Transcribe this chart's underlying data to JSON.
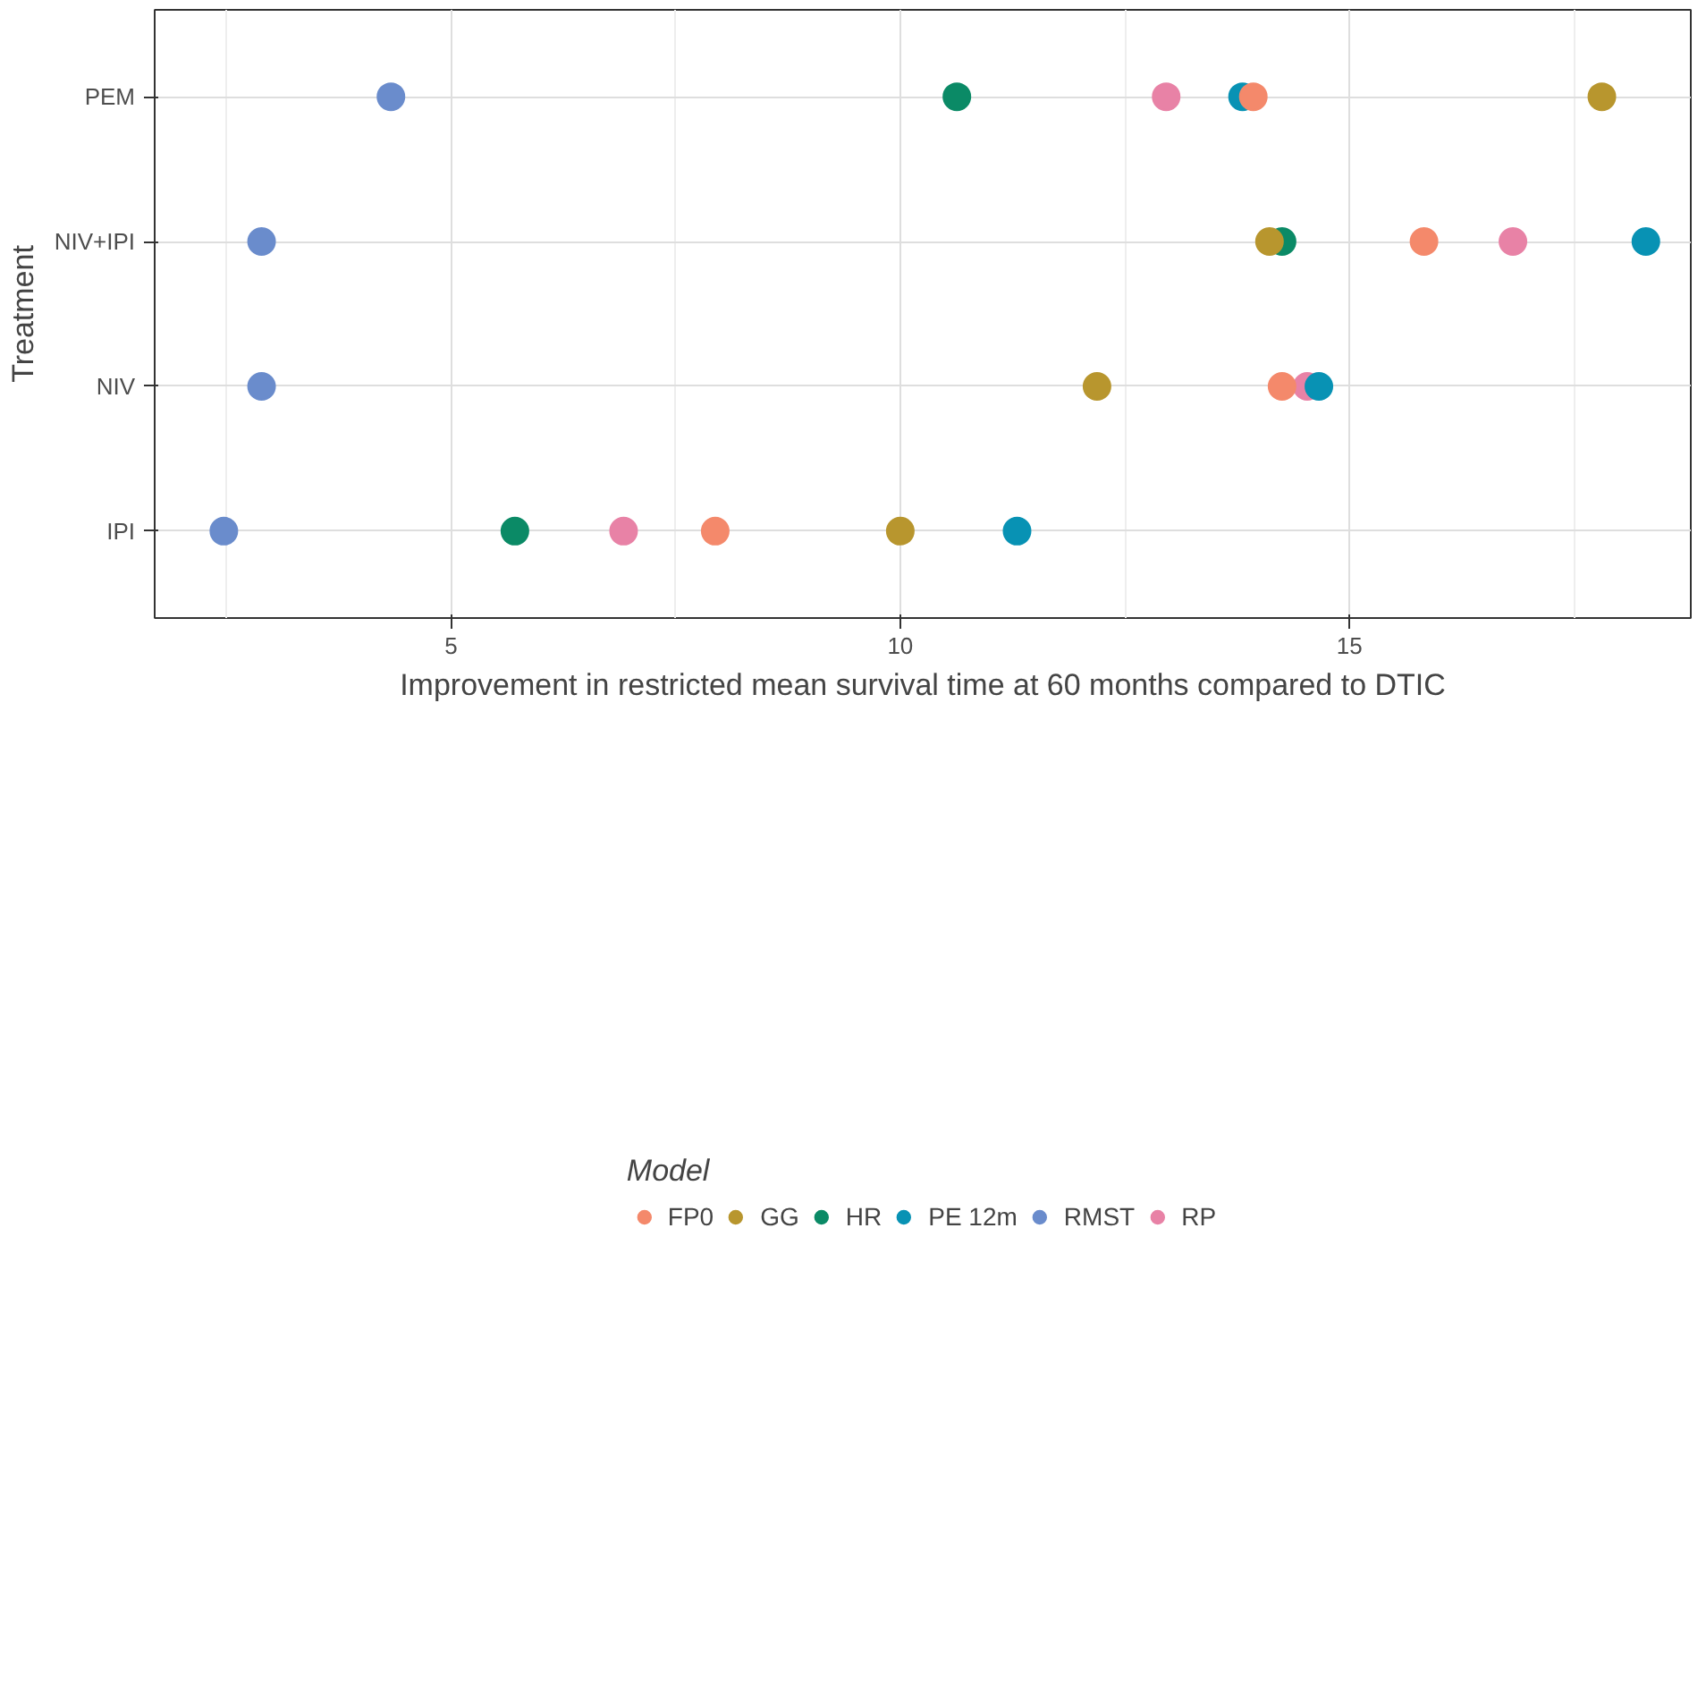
{
  "chart_data": {
    "type": "scatter",
    "orientation": "horizontal",
    "xlabel": "Improvement in restricted mean survival time at 60 months compared to DTIC",
    "ylabel": "Treatment",
    "legend_title": "Model",
    "categories": [
      "PEM",
      "NIV+IPI",
      "NIV",
      "IPI"
    ],
    "xlim": [
      1.7,
      18.8
    ],
    "xticks": [
      5,
      10,
      15
    ],
    "grid": true,
    "legend": "bottom",
    "marker": "circle",
    "series": [
      {
        "name": "FP0",
        "color": "#f4896b",
        "values": [
          13.93,
          15.83,
          14.25,
          7.94
        ]
      },
      {
        "name": "GG",
        "color": "#b8962e",
        "values": [
          17.81,
          14.11,
          12.19,
          10.0
        ]
      },
      {
        "name": "HR",
        "color": "#0b8a66",
        "values": [
          10.63,
          14.25,
          null,
          5.71
        ]
      },
      {
        "name": "PE 12m",
        "color": "#0892b4",
        "values": [
          13.81,
          18.3,
          14.66,
          11.3
        ]
      },
      {
        "name": "RMST",
        "color": "#6a8ccc",
        "values": [
          4.33,
          2.89,
          2.89,
          2.47
        ]
      },
      {
        "name": "RP",
        "color": "#e882a6",
        "values": [
          12.96,
          16.82,
          14.53,
          6.92
        ]
      }
    ]
  }
}
